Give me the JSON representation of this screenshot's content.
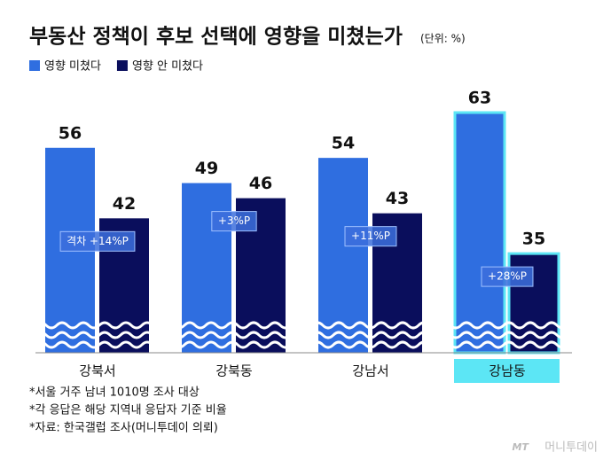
{
  "chart_data": {
    "type": "bar",
    "title": "부동산 정책이 후보 선택에 영향을 미쳤는가",
    "subtitle": "(단위: %)",
    "categories": [
      "강북서",
      "강북동",
      "강남서",
      "강남동"
    ],
    "series": [
      {
        "name": "영향 미쳤다",
        "color": "#2f6ee0",
        "values": [
          56,
          49,
          54,
          63
        ]
      },
      {
        "name": "영향 안 미쳤다",
        "color": "#0a0e5c",
        "values": [
          42,
          46,
          43,
          35
        ]
      }
    ],
    "annotations": [
      "격차 +14%P",
      "+3%P",
      "+11%P",
      "+28%P"
    ],
    "highlight": 3,
    "highlight_color": "#5ce6f5",
    "notes": [
      "*서울 거주 남녀 1010명 조사 대상",
      "*각 응답은 해당 지역내 응답자 기준 비율",
      "*자료: 한국갤럽 조사(머니투데이 의뢰)"
    ],
    "source_logo": "머니투데이"
  }
}
